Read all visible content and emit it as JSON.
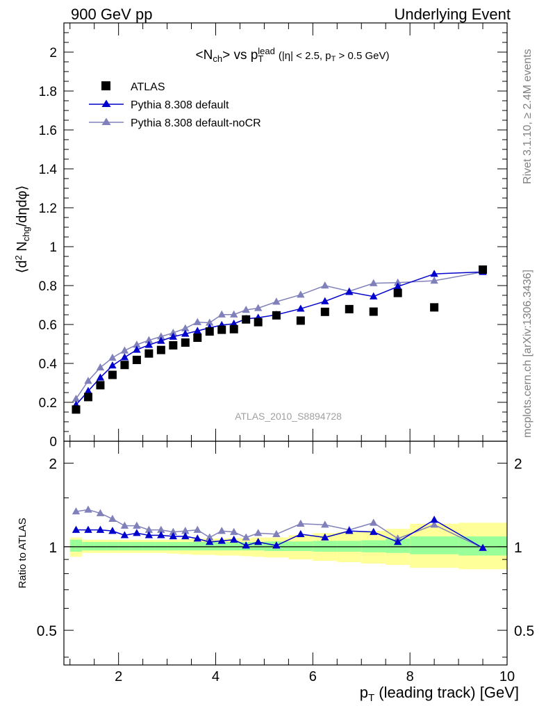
{
  "header": {
    "left": "900 GeV pp",
    "right": "Underlying Event"
  },
  "side_labels": {
    "top": "Rivet 3.1.10, ≥ 2.4M events",
    "bottom": "mcplots.cern.ch [arXiv:1306.3436]"
  },
  "watermark": "ATLAS_2010_S8894728",
  "chart_data": [
    {
      "type": "scatter",
      "title": {
        "main": "<N",
        "main_sub": "ch",
        "vs": "> vs p",
        "vs_sup": "lead",
        "vs_sub": "T",
        "cuts": "(|η| < 2.5, p",
        "cuts_sub": "T",
        "cuts_end": " > 0.5 GeV)"
      },
      "ylabel": {
        "a": "⟨d",
        "a_sup": "2",
        "b": " N",
        "b_sub": "chg",
        "c": "/dηdφ⟩"
      },
      "xlim": [
        0.875,
        10
      ],
      "ylim": [
        0,
        2.15
      ],
      "yticks": [
        "0",
        "0.2",
        "0.4",
        "0.6",
        "0.8",
        "1",
        "1.2",
        "1.4",
        "1.6",
        "1.8",
        "2"
      ],
      "legend_position": "top-left",
      "x": [
        1.125,
        1.375,
        1.625,
        1.875,
        2.125,
        2.375,
        2.625,
        2.875,
        3.125,
        3.375,
        3.625,
        3.875,
        4.125,
        4.375,
        4.625,
        4.875,
        5.25,
        5.75,
        6.25,
        6.75,
        7.25,
        7.75,
        8.5,
        9.5
      ],
      "series": [
        {
          "name": "ATLAS",
          "color": "#000000",
          "marker": "square",
          "values": [
            0.163,
            0.227,
            0.288,
            0.341,
            0.392,
            0.418,
            0.451,
            0.469,
            0.493,
            0.507,
            0.532,
            0.564,
            0.573,
            0.576,
            0.626,
            0.612,
            0.647,
            0.62,
            0.665,
            0.679,
            0.666,
            0.762,
            0.688,
            0.882
          ]
        },
        {
          "name": "Pythia 8.308 default",
          "color": "#0000cc",
          "marker": "triangle",
          "values": [
            0.187,
            0.258,
            0.327,
            0.389,
            0.431,
            0.47,
            0.495,
            0.516,
            0.537,
            0.552,
            0.567,
            0.583,
            0.597,
            0.604,
            0.629,
            0.635,
            0.65,
            0.681,
            0.719,
            0.767,
            0.744,
            0.795,
            0.86,
            0.87
          ]
        },
        {
          "name": "Pythia 8.308 default-noCR",
          "color": "#8080bb",
          "marker": "triangle",
          "values": [
            0.218,
            0.31,
            0.379,
            0.429,
            0.466,
            0.496,
            0.519,
            0.538,
            0.557,
            0.58,
            0.612,
            0.609,
            0.651,
            0.651,
            0.675,
            0.684,
            0.717,
            0.753,
            0.8,
            0.771,
            0.812,
            0.815,
            0.825,
            0.87
          ]
        }
      ]
    },
    {
      "type": "scatter",
      "ylabel": "Ratio to ATLAS",
      "xlabel": {
        "a": "p",
        "a_sub": "T",
        "b": " (leading track) [GeV]"
      },
      "xlim": [
        0.875,
        10
      ],
      "ylim": [
        0.375,
        2.4
      ],
      "log_y": true,
      "yticks": [
        "0.5",
        "1",
        "2"
      ],
      "xticks": [
        "2",
        "4",
        "6",
        "8",
        "10"
      ],
      "reference": 1,
      "band_inner_color": "#99ff99",
      "band_outer_color": "#ffff99",
      "bins": [
        [
          1,
          1.25
        ],
        [
          1.25,
          1.5
        ],
        [
          1.5,
          1.75
        ],
        [
          1.75,
          2
        ],
        [
          2,
          2.25
        ],
        [
          2.25,
          2.5
        ],
        [
          2.5,
          2.75
        ],
        [
          2.75,
          3
        ],
        [
          3,
          3.25
        ],
        [
          3.25,
          3.5
        ],
        [
          3.5,
          3.75
        ],
        [
          3.75,
          4
        ],
        [
          4,
          4.25
        ],
        [
          4.25,
          4.5
        ],
        [
          4.5,
          4.75
        ],
        [
          4.75,
          5
        ],
        [
          5,
          5.5
        ],
        [
          5.5,
          6
        ],
        [
          6,
          6.5
        ],
        [
          6.5,
          7
        ],
        [
          7,
          7.5
        ],
        [
          7.5,
          8
        ],
        [
          8,
          9
        ],
        [
          9,
          10
        ]
      ],
      "band_inner": [
        [
          0.96,
          1.06
        ],
        [
          0.97,
          1.04
        ],
        [
          0.97,
          1.04
        ],
        [
          0.97,
          1.04
        ],
        [
          0.97,
          1.04
        ],
        [
          0.97,
          1.04
        ],
        [
          0.97,
          1.04
        ],
        [
          0.97,
          1.04
        ],
        [
          0.97,
          1.04
        ],
        [
          0.97,
          1.04
        ],
        [
          0.97,
          1.04
        ],
        [
          0.97,
          1.04
        ],
        [
          0.97,
          1.04
        ],
        [
          0.97,
          1.04
        ],
        [
          0.97,
          1.04
        ],
        [
          0.97,
          1.04
        ],
        [
          0.965,
          1.045
        ],
        [
          0.965,
          1.045
        ],
        [
          0.96,
          1.05
        ],
        [
          0.96,
          1.05
        ],
        [
          0.955,
          1.055
        ],
        [
          0.95,
          1.07
        ],
        [
          0.94,
          1.09
        ],
        [
          0.93,
          1.09
        ]
      ],
      "band_outer": [
        [
          0.92,
          1.08
        ],
        [
          0.95,
          1.06
        ],
        [
          0.95,
          1.06
        ],
        [
          0.95,
          1.06
        ],
        [
          0.95,
          1.06
        ],
        [
          0.95,
          1.06
        ],
        [
          0.95,
          1.06
        ],
        [
          0.95,
          1.06
        ],
        [
          0.945,
          1.06
        ],
        [
          0.94,
          1.065
        ],
        [
          0.935,
          1.07
        ],
        [
          0.935,
          1.07
        ],
        [
          0.93,
          1.07
        ],
        [
          0.93,
          1.075
        ],
        [
          0.925,
          1.075
        ],
        [
          0.92,
          1.08
        ],
        [
          0.915,
          1.08
        ],
        [
          0.9,
          1.1
        ],
        [
          0.89,
          1.12
        ],
        [
          0.88,
          1.13
        ],
        [
          0.87,
          1.14
        ],
        [
          0.86,
          1.16
        ],
        [
          0.84,
          1.21
        ],
        [
          0.83,
          1.22
        ]
      ],
      "series": [
        {
          "name": "Pythia 8.308 default",
          "color": "#0000cc",
          "values": [
            1.15,
            1.15,
            1.15,
            1.14,
            1.1,
            1.12,
            1.1,
            1.1,
            1.09,
            1.09,
            1.07,
            1.04,
            1.05,
            1.06,
            1.01,
            1.04,
            1.01,
            1.11,
            1.08,
            1.14,
            1.13,
            1.04,
            1.25,
            0.99
          ]
        },
        {
          "name": "Pythia 8.308 default-noCR",
          "color": "#8080bb",
          "values": [
            1.34,
            1.36,
            1.32,
            1.26,
            1.19,
            1.19,
            1.15,
            1.15,
            1.13,
            1.14,
            1.15,
            1.08,
            1.14,
            1.13,
            1.08,
            1.12,
            1.11,
            1.21,
            1.2,
            1.15,
            1.22,
            1.07,
            1.2,
            0.99
          ]
        }
      ]
    }
  ]
}
